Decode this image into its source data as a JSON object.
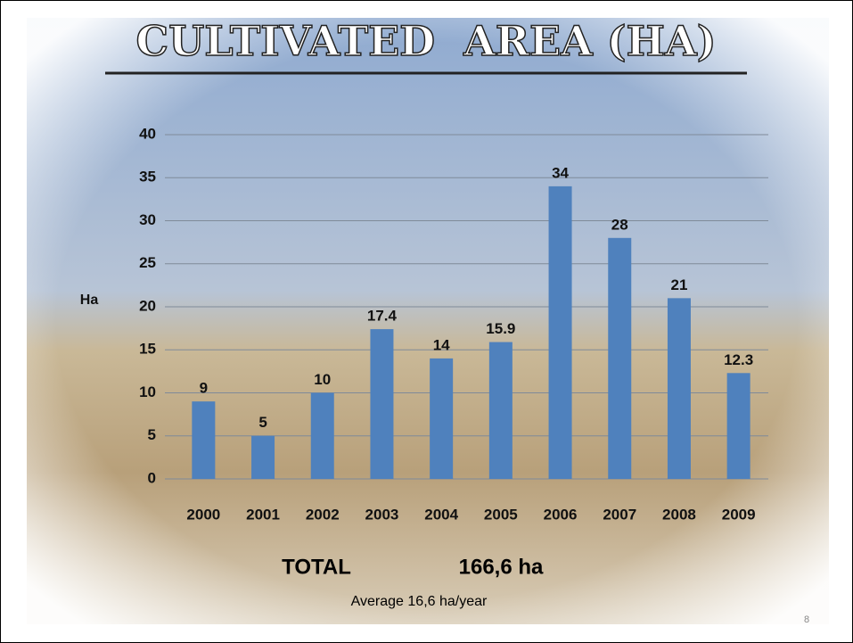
{
  "chart_data": {
    "type": "bar",
    "title": "CULTIVATED  AREA (HA)",
    "y_label": "Ha",
    "categories": [
      "2000",
      "2001",
      "2002",
      "2003",
      "2004",
      "2005",
      "2006",
      "2007",
      "2008",
      "2009"
    ],
    "values": [
      9,
      5,
      10,
      17.4,
      14,
      15.9,
      34,
      28,
      21,
      12.3
    ],
    "color": "#4f81bd",
    "ylim": [
      0,
      40
    ],
    "yticks": [
      0,
      5,
      10,
      15,
      20,
      25,
      30,
      35,
      40
    ],
    "grid": true,
    "annotations": [
      "TOTAL",
      "166,6 ha",
      "Average 16,6 ha/year"
    ],
    "page_number": 8
  }
}
